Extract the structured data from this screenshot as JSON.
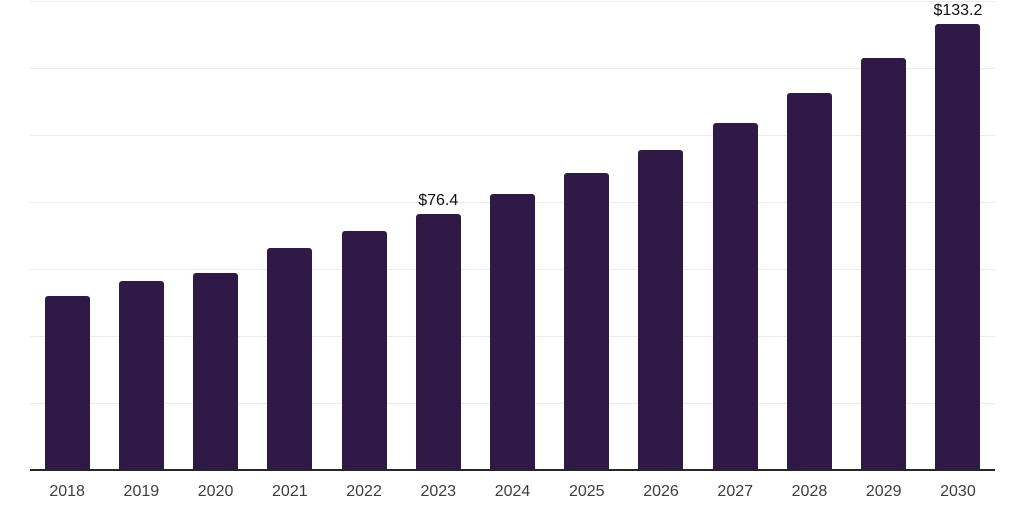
{
  "chart_data": {
    "type": "bar",
    "title": "",
    "xlabel": "",
    "ylabel": "",
    "categories": [
      "2018",
      "2019",
      "2020",
      "2021",
      "2022",
      "2023",
      "2024",
      "2025",
      "2026",
      "2027",
      "2028",
      "2029",
      "2030"
    ],
    "values": [
      51.9,
      56.5,
      58.9,
      66.3,
      71.3,
      76.4,
      82.3,
      88.7,
      95.5,
      103.5,
      112.6,
      122.9,
      133.2
    ],
    "data_labels": [
      "",
      "",
      "",
      "",
      "",
      "$76.4",
      "",
      "",
      "",
      "",
      "",
      "",
      "$133.2"
    ],
    "value_unit": "USD billions (implied by $ labels)",
    "ylim": [
      0,
      140
    ],
    "grid": true,
    "gridline_step": 20,
    "y_tick_labels_visible": false,
    "legend_position": "none"
  },
  "colors": {
    "background": "#ffffff",
    "bar": "#2f1a47",
    "gridline": "#ececec",
    "axis_line": "#262626",
    "x_label": "#3d3d3d",
    "value_label": "#111111"
  }
}
